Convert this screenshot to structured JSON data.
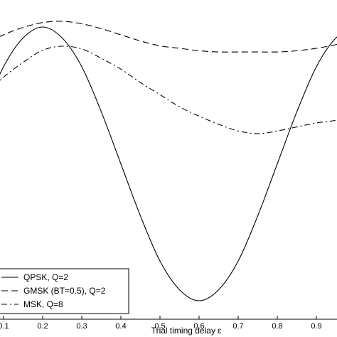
{
  "chart_data": {
    "type": "line",
    "title": "",
    "xlabel": "Trial timing delay",
    "xlabel_symbol": "ε",
    "ylabel": "",
    "xlim": [
      0,
      1
    ],
    "x_ticks": [
      "0.1",
      "0.2",
      "0.3",
      "0.4",
      "0.5",
      "0.6",
      "0.7",
      "0.8",
      "0.9"
    ],
    "y_ticks": [],
    "grid": false,
    "legend_position": "bottom-left",
    "series": [
      {
        "name": "QPSK, Q=2",
        "style": "solid",
        "color": "#000000",
        "x": [
          0.0,
          0.05,
          0.1,
          0.15,
          0.2,
          0.25,
          0.3,
          0.35,
          0.4,
          0.45,
          0.5,
          0.55,
          0.6,
          0.65,
          0.7,
          0.75,
          0.8,
          0.85,
          0.9,
          0.95,
          1.0
        ],
        "y": [
          0.0,
          0.38,
          0.71,
          0.92,
          1.0,
          0.92,
          0.71,
          0.38,
          0.0,
          -0.38,
          -0.71,
          -0.92,
          -1.0,
          -0.92,
          -0.71,
          -0.38,
          0.0,
          0.38,
          0.71,
          0.92,
          1.0
        ]
      },
      {
        "name": "GMSK (BT=0.5), Q=2",
        "style": "dashed",
        "color": "#000000",
        "x": [
          0.0,
          0.05,
          0.1,
          0.15,
          0.2,
          0.25,
          0.3,
          0.35,
          0.4,
          0.45,
          0.5,
          0.55,
          0.6,
          0.65,
          0.7,
          0.75,
          0.8,
          0.85,
          0.9,
          0.95,
          1.0
        ],
        "y": [
          0.69,
          0.79,
          0.87,
          0.93,
          0.97,
          0.98,
          0.96,
          0.92,
          0.87,
          0.82,
          0.78,
          0.76,
          0.74,
          0.73,
          0.73,
          0.73,
          0.73,
          0.74,
          0.76,
          0.79,
          0.83
        ]
      },
      {
        "name": "MSK, Q=8",
        "style": "dashdot",
        "color": "#000000",
        "x": [
          0.0,
          0.05,
          0.1,
          0.15,
          0.2,
          0.25,
          0.3,
          0.35,
          0.4,
          0.45,
          0.5,
          0.55,
          0.6,
          0.65,
          0.7,
          0.75,
          0.8,
          0.85,
          0.9,
          0.95,
          1.0
        ],
        "y": [
          0.4,
          0.51,
          0.65,
          0.76,
          0.85,
          0.88,
          0.86,
          0.79,
          0.71,
          0.61,
          0.52,
          0.43,
          0.36,
          0.3,
          0.25,
          0.23,
          0.25,
          0.28,
          0.31,
          0.33,
          0.38
        ]
      }
    ]
  }
}
